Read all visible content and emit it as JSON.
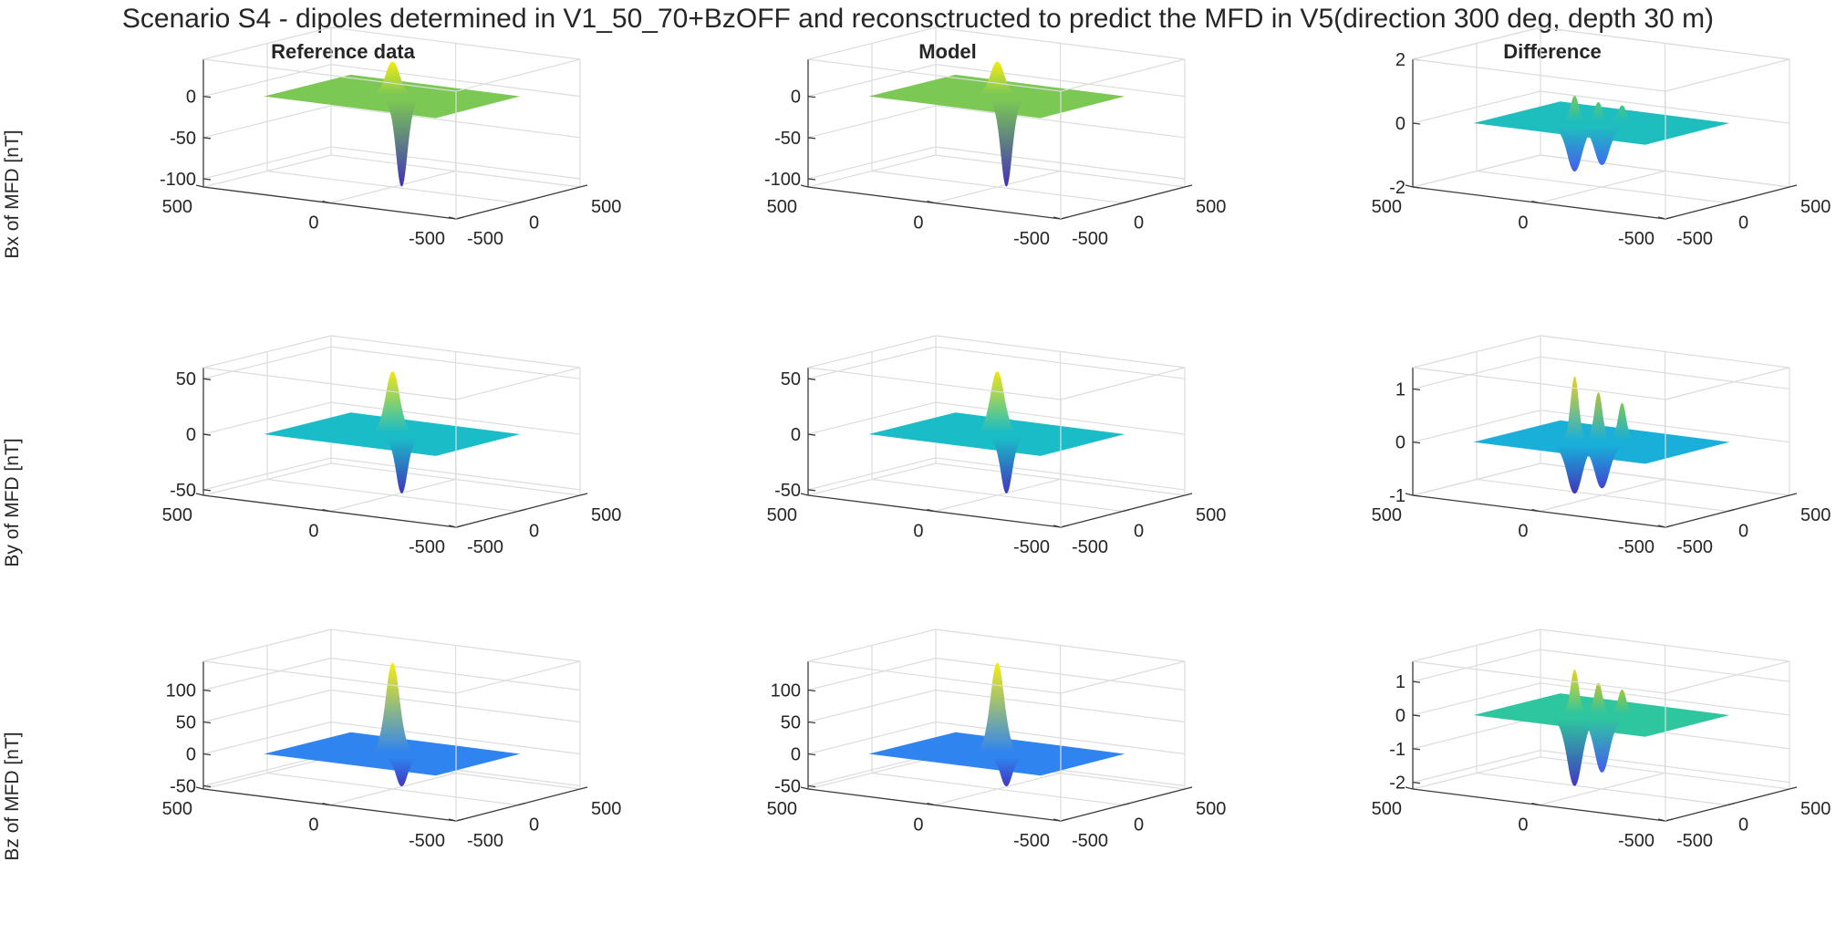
{
  "figure": {
    "title": "Scenario S4 - dipoles determined in V1_50_70+BzOFF and reconsctructed to predict the MFD in V5(direction 300 deg, depth 30 m)",
    "columns": [
      "Reference data",
      "Model",
      "Difference"
    ],
    "row_labels": [
      "Bx of MFD [nT]",
      "By of MFD [nT]",
      "Bz of MFD [nT]"
    ]
  },
  "chart_data": [
    {
      "type": "surface3d",
      "row": "Bx of MFD [nT]",
      "column": "Reference data",
      "zlim": [
        -110,
        45
      ],
      "zticks": [
        0,
        -50,
        -100
      ],
      "xticks": [
        -500,
        0,
        500
      ],
      "yticks": [
        -500,
        0,
        500
      ],
      "plane": 0,
      "peaks": [
        40
      ],
      "troughs": [
        -105
      ],
      "colormap": "parula",
      "grid": true
    },
    {
      "type": "surface3d",
      "row": "Bx of MFD [nT]",
      "column": "Model",
      "zlim": [
        -110,
        45
      ],
      "zticks": [
        0,
        -50,
        -100
      ],
      "xticks": [
        -500,
        0,
        500
      ],
      "yticks": [
        -500,
        0,
        500
      ],
      "plane": 0,
      "peaks": [
        40
      ],
      "troughs": [
        -105
      ],
      "colormap": "parula",
      "grid": true
    },
    {
      "type": "surface3d",
      "row": "Bx of MFD [nT]",
      "column": "Difference",
      "zlim": [
        -2,
        2
      ],
      "zticks": [
        2,
        0,
        -2
      ],
      "xticks": [
        -500,
        0,
        500
      ],
      "yticks": [
        -500,
        0,
        500
      ],
      "plane": 0,
      "peaks": [
        0.8,
        0.6,
        0.5
      ],
      "troughs": [
        -1.4,
        -1.2
      ],
      "colormap": "parula",
      "grid": true
    },
    {
      "type": "surface3d",
      "row": "By of MFD [nT]",
      "column": "Reference data",
      "zlim": [
        -55,
        60
      ],
      "zticks": [
        50,
        0,
        -50
      ],
      "xticks": [
        -500,
        0,
        500
      ],
      "yticks": [
        -500,
        0,
        500
      ],
      "plane": 0,
      "peaks": [
        55
      ],
      "troughs": [
        -50
      ],
      "colormap": "parula",
      "grid": true
    },
    {
      "type": "surface3d",
      "row": "By of MFD [nT]",
      "column": "Model",
      "zlim": [
        -55,
        60
      ],
      "zticks": [
        50,
        0,
        -50
      ],
      "xticks": [
        -500,
        0,
        500
      ],
      "yticks": [
        -500,
        0,
        500
      ],
      "plane": 0,
      "peaks": [
        55
      ],
      "troughs": [
        -50
      ],
      "colormap": "parula",
      "grid": true
    },
    {
      "type": "surface3d",
      "row": "By of MFD [nT]",
      "column": "Difference",
      "zlim": [
        -1,
        1.4
      ],
      "zticks": [
        1,
        0,
        -1
      ],
      "xticks": [
        -500,
        0,
        500
      ],
      "yticks": [
        -500,
        0,
        500
      ],
      "plane": 0,
      "peaks": [
        1.2,
        0.9,
        0.7
      ],
      "troughs": [
        -0.9,
        -0.8
      ],
      "colormap": "parula",
      "grid": true
    },
    {
      "type": "surface3d",
      "row": "Bz of MFD [nT]",
      "column": "Reference data",
      "zlim": [
        -55,
        145
      ],
      "zticks": [
        100,
        50,
        0,
        -50
      ],
      "xticks": [
        -500,
        0,
        500
      ],
      "yticks": [
        -500,
        0,
        500
      ],
      "plane": 0,
      "peaks": [
        140
      ],
      "troughs": [
        -45
      ],
      "colormap": "parula",
      "grid": true
    },
    {
      "type": "surface3d",
      "row": "Bz of MFD [nT]",
      "column": "Model",
      "zlim": [
        -55,
        145
      ],
      "zticks": [
        100,
        50,
        0,
        -50
      ],
      "xticks": [
        -500,
        0,
        500
      ],
      "yticks": [
        -500,
        0,
        500
      ],
      "plane": 0,
      "peaks": [
        140
      ],
      "troughs": [
        -45
      ],
      "colormap": "parula",
      "grid": true
    },
    {
      "type": "surface3d",
      "row": "Bz of MFD [nT]",
      "column": "Difference",
      "zlim": [
        -2.2,
        1.6
      ],
      "zticks": [
        1,
        0,
        -1,
        -2
      ],
      "xticks": [
        -500,
        0,
        500
      ],
      "yticks": [
        -500,
        0,
        500
      ],
      "plane": 0,
      "peaks": [
        1.3,
        0.9,
        0.7
      ],
      "troughs": [
        -2.0,
        -1.6
      ],
      "colormap": "parula",
      "grid": true
    }
  ]
}
